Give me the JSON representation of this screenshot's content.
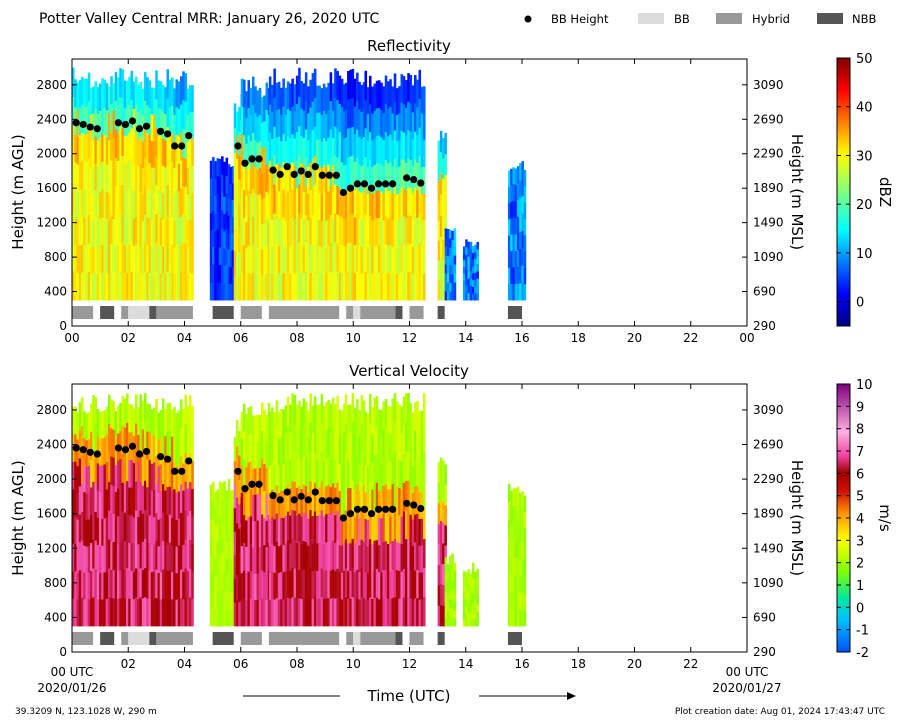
{
  "header": {
    "title": "Potter Valley Central MRR:  January 26, 2020 UTC",
    "legend": [
      {
        "label": "BB Height",
        "kind": "marker",
        "color": "#000000"
      },
      {
        "label": "BB",
        "kind": "swatch",
        "color": "#dcdcdc"
      },
      {
        "label": "Hybrid",
        "kind": "swatch",
        "color": "#999999"
      },
      {
        "label": "NBB",
        "kind": "swatch",
        "color": "#555555"
      }
    ]
  },
  "footer": {
    "location": "39.3209 N, 123.1028 W, 290 m",
    "created": "Plot creation date: Aug 01, 2024 17:43:47 UTC",
    "xlabel": "Time (UTC)",
    "start_label": "00 UTC",
    "start_date": "2020/01/26",
    "end_label": "00 UTC",
    "end_date": "2020/01/27"
  },
  "chart_data": [
    {
      "type": "heatmap",
      "title": "Reflectivity",
      "ylabel": "Height (m AGL)",
      "ylabel_right": "Height (m MSL)",
      "xlim": [
        0,
        24
      ],
      "ylim": [
        0,
        3100
      ],
      "x_ticks": [
        "00",
        "02",
        "04",
        "06",
        "08",
        "10",
        "12",
        "14",
        "16",
        "18",
        "20",
        "22",
        "00"
      ],
      "y_ticks": [
        0,
        400,
        800,
        1200,
        1600,
        2000,
        2400,
        2800
      ],
      "y_ticks_right": [
        290,
        690,
        1090,
        1490,
        1890,
        2290,
        2690,
        3090
      ],
      "colorbar": {
        "label": "dBZ",
        "min": -5,
        "max": 50,
        "ticks": [
          0,
          10,
          20,
          30,
          40,
          50
        ],
        "scheme": "jet"
      },
      "bright_band_height": [
        [
          0.15,
          2360
        ],
        [
          0.4,
          2340
        ],
        [
          0.65,
          2310
        ],
        [
          0.9,
          2290
        ],
        [
          1.65,
          2360
        ],
        [
          1.9,
          2340
        ],
        [
          2.15,
          2380
        ],
        [
          2.4,
          2290
        ],
        [
          2.65,
          2320
        ],
        [
          3.15,
          2260
        ],
        [
          3.4,
          2230
        ],
        [
          3.65,
          2090
        ],
        [
          3.9,
          2090
        ],
        [
          4.15,
          2210
        ],
        [
          5.9,
          2090
        ],
        [
          6.15,
          1890
        ],
        [
          6.4,
          1940
        ],
        [
          6.65,
          1940
        ],
        [
          7.15,
          1810
        ],
        [
          7.4,
          1760
        ],
        [
          7.65,
          1850
        ],
        [
          7.9,
          1760
        ],
        [
          8.15,
          1800
        ],
        [
          8.4,
          1760
        ],
        [
          8.65,
          1850
        ],
        [
          8.9,
          1750
        ],
        [
          9.15,
          1750
        ],
        [
          9.4,
          1750
        ],
        [
          9.65,
          1550
        ],
        [
          9.9,
          1600
        ],
        [
          10.15,
          1650
        ],
        [
          10.4,
          1650
        ],
        [
          10.65,
          1600
        ],
        [
          10.9,
          1650
        ],
        [
          11.15,
          1650
        ],
        [
          11.4,
          1650
        ],
        [
          11.9,
          1720
        ],
        [
          12.15,
          1700
        ],
        [
          12.4,
          1660
        ]
      ],
      "bb_type_strip": [
        {
          "start": 0.0,
          "end": 0.75,
          "type": "Hybrid"
        },
        {
          "start": 1.0,
          "end": 1.5,
          "type": "NBB"
        },
        {
          "start": 1.75,
          "end": 2.0,
          "type": "Hybrid"
        },
        {
          "start": 2.0,
          "end": 2.75,
          "type": "BB"
        },
        {
          "start": 2.75,
          "end": 3.0,
          "type": "NBB"
        },
        {
          "start": 3.0,
          "end": 4.3,
          "type": "Hybrid"
        },
        {
          "start": 5.0,
          "end": 5.75,
          "type": "NBB"
        },
        {
          "start": 6.0,
          "end": 6.75,
          "type": "Hybrid"
        },
        {
          "start": 7.0,
          "end": 9.5,
          "type": "Hybrid"
        },
        {
          "start": 9.75,
          "end": 10.0,
          "type": "Hybrid"
        },
        {
          "start": 10.0,
          "end": 10.25,
          "type": "BB"
        },
        {
          "start": 10.25,
          "end": 11.5,
          "type": "Hybrid"
        },
        {
          "start": 11.5,
          "end": 11.75,
          "type": "NBB"
        },
        {
          "start": 12.0,
          "end": 12.5,
          "type": "Hybrid"
        },
        {
          "start": 13.0,
          "end": 13.25,
          "type": "NBB"
        },
        {
          "start": 15.5,
          "end": 16.0,
          "type": "NBB"
        }
      ]
    },
    {
      "type": "heatmap",
      "title": "Vertical Velocity",
      "ylabel": "Height (m AGL)",
      "ylabel_right": "Height (m MSL)",
      "xlim": [
        0,
        24
      ],
      "ylim": [
        0,
        3100
      ],
      "x_ticks": [
        "",
        "02",
        "04",
        "06",
        "08",
        "10",
        "12",
        "14",
        "16",
        "18",
        "20",
        "22",
        ""
      ],
      "y_ticks": [
        0,
        400,
        800,
        1200,
        1600,
        2000,
        2400,
        2800
      ],
      "y_ticks_right": [
        290,
        690,
        1090,
        1490,
        1890,
        2290,
        2690,
        3090
      ],
      "colorbar": {
        "label": "m/s",
        "min": -2,
        "max": 10,
        "ticks": [
          -2,
          -1,
          0,
          1,
          2,
          3,
          4,
          5,
          6,
          7,
          8,
          9,
          10
        ],
        "scheme": "velocity"
      },
      "bright_band_height": [
        [
          0.15,
          2360
        ],
        [
          0.4,
          2340
        ],
        [
          0.65,
          2310
        ],
        [
          0.9,
          2290
        ],
        [
          1.65,
          2360
        ],
        [
          1.9,
          2340
        ],
        [
          2.15,
          2380
        ],
        [
          2.4,
          2290
        ],
        [
          2.65,
          2320
        ],
        [
          3.15,
          2260
        ],
        [
          3.4,
          2230
        ],
        [
          3.65,
          2090
        ],
        [
          3.9,
          2090
        ],
        [
          4.15,
          2210
        ],
        [
          5.9,
          2090
        ],
        [
          6.15,
          1890
        ],
        [
          6.4,
          1940
        ],
        [
          6.65,
          1940
        ],
        [
          7.15,
          1810
        ],
        [
          7.4,
          1760
        ],
        [
          7.65,
          1850
        ],
        [
          7.9,
          1760
        ],
        [
          8.15,
          1800
        ],
        [
          8.4,
          1760
        ],
        [
          8.65,
          1850
        ],
        [
          8.9,
          1750
        ],
        [
          9.15,
          1750
        ],
        [
          9.4,
          1750
        ],
        [
          9.65,
          1550
        ],
        [
          9.9,
          1600
        ],
        [
          10.15,
          1650
        ],
        [
          10.4,
          1650
        ],
        [
          10.65,
          1600
        ],
        [
          10.9,
          1650
        ],
        [
          11.15,
          1650
        ],
        [
          11.4,
          1650
        ],
        [
          11.9,
          1720
        ],
        [
          12.15,
          1700
        ],
        [
          12.4,
          1660
        ]
      ],
      "bb_type_strip": [
        {
          "start": 0.0,
          "end": 0.75,
          "type": "Hybrid"
        },
        {
          "start": 1.0,
          "end": 1.5,
          "type": "NBB"
        },
        {
          "start": 1.75,
          "end": 2.0,
          "type": "Hybrid"
        },
        {
          "start": 2.0,
          "end": 2.75,
          "type": "BB"
        },
        {
          "start": 2.75,
          "end": 3.0,
          "type": "NBB"
        },
        {
          "start": 3.0,
          "end": 4.3,
          "type": "Hybrid"
        },
        {
          "start": 5.0,
          "end": 5.75,
          "type": "NBB"
        },
        {
          "start": 6.0,
          "end": 6.75,
          "type": "Hybrid"
        },
        {
          "start": 7.0,
          "end": 9.5,
          "type": "Hybrid"
        },
        {
          "start": 9.75,
          "end": 10.0,
          "type": "Hybrid"
        },
        {
          "start": 10.0,
          "end": 10.25,
          "type": "BB"
        },
        {
          "start": 10.25,
          "end": 11.5,
          "type": "Hybrid"
        },
        {
          "start": 11.5,
          "end": 11.75,
          "type": "NBB"
        },
        {
          "start": 12.0,
          "end": 12.5,
          "type": "Hybrid"
        },
        {
          "start": 13.0,
          "end": 13.25,
          "type": "NBB"
        },
        {
          "start": 15.5,
          "end": 16.0,
          "type": "NBB"
        }
      ]
    }
  ]
}
